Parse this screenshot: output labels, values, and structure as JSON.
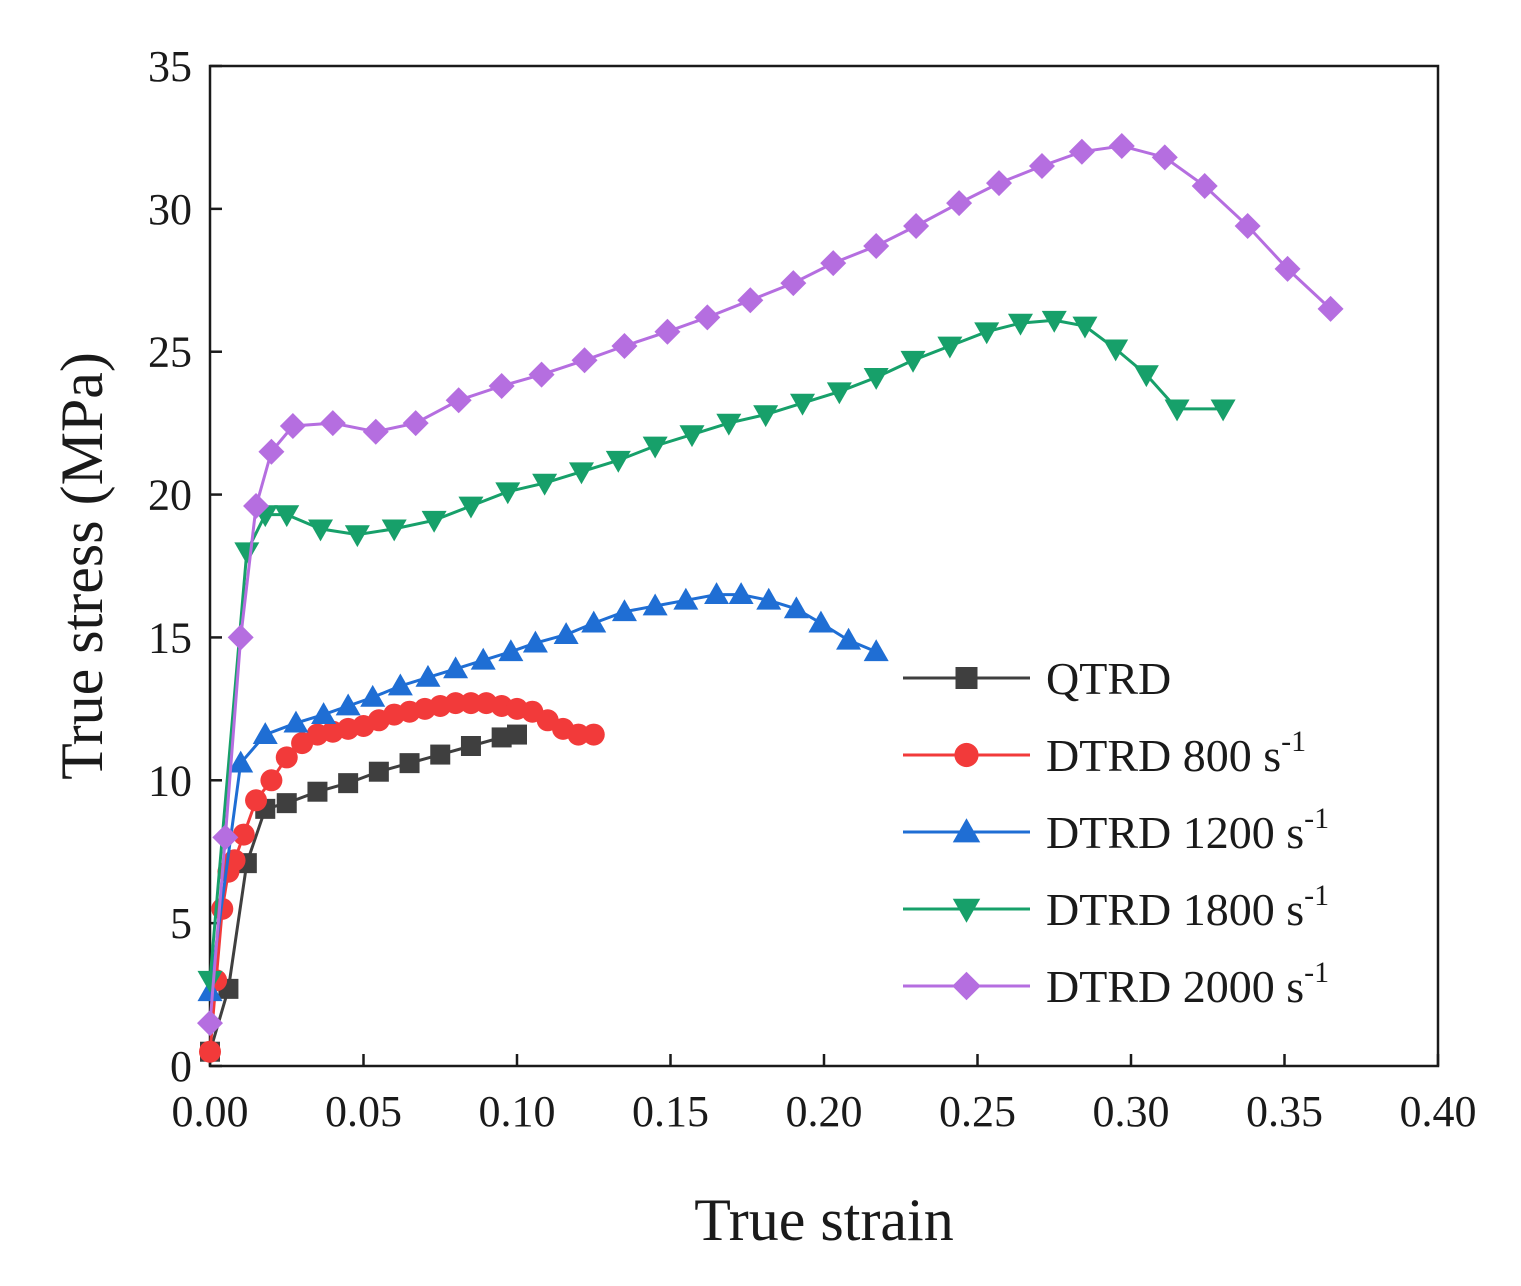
{
  "chart_data": {
    "type": "line",
    "title": "",
    "xlabel": "True strain",
    "ylabel": "True stress (MPa)",
    "xlim": [
      0,
      0.4
    ],
    "ylim": [
      0,
      35
    ],
    "xticks": [
      0,
      0.05,
      0.1,
      0.15,
      0.2,
      0.25,
      0.3,
      0.35,
      0.4
    ],
    "xtick_labels": [
      "0.00",
      "0.05",
      "0.10",
      "0.15",
      "0.20",
      "0.25",
      "0.30",
      "0.35",
      "0.40"
    ],
    "yticks": [
      0,
      5,
      10,
      15,
      20,
      25,
      30,
      35
    ],
    "ytick_labels": [
      "0",
      "5",
      "10",
      "15",
      "20",
      "25",
      "30",
      "35"
    ],
    "grid": false,
    "legend_position": "bottom-right",
    "series": [
      {
        "name": "QTRD",
        "legend_main": "QTRD",
        "legend_sup": "",
        "color": "#3f3f3f",
        "marker": "square",
        "x": [
          0.0,
          0.006,
          0.012,
          0.018,
          0.025,
          0.035,
          0.045,
          0.055,
          0.065,
          0.075,
          0.085,
          0.095,
          0.1
        ],
        "y": [
          0.5,
          2.7,
          7.1,
          9.0,
          9.2,
          9.6,
          9.9,
          10.3,
          10.6,
          10.9,
          11.2,
          11.5,
          11.6
        ]
      },
      {
        "name": "DTRD 800 s-1",
        "legend_main": "DTRD 800 s",
        "legend_sup": "-1",
        "color": "#f23a3a",
        "marker": "circle",
        "x": [
          0.0,
          0.002,
          0.004,
          0.006,
          0.008,
          0.011,
          0.015,
          0.02,
          0.025,
          0.03,
          0.035,
          0.04,
          0.045,
          0.05,
          0.055,
          0.06,
          0.065,
          0.07,
          0.075,
          0.08,
          0.085,
          0.09,
          0.095,
          0.1,
          0.105,
          0.11,
          0.115,
          0.12,
          0.125
        ],
        "y": [
          0.5,
          3.0,
          5.5,
          6.8,
          7.2,
          8.1,
          9.3,
          10.0,
          10.8,
          11.3,
          11.6,
          11.7,
          11.8,
          11.9,
          12.1,
          12.3,
          12.4,
          12.5,
          12.6,
          12.7,
          12.7,
          12.7,
          12.6,
          12.5,
          12.4,
          12.1,
          11.8,
          11.6,
          11.6
        ]
      },
      {
        "name": "DTRD 1200 s-1",
        "legend_main": "DTRD 1200 s",
        "legend_sup": "-1",
        "color": "#1f6ed4",
        "marker": "triangle-up",
        "x": [
          0.0,
          0.01,
          0.018,
          0.028,
          0.037,
          0.045,
          0.053,
          0.062,
          0.071,
          0.08,
          0.089,
          0.098,
          0.106,
          0.116,
          0.125,
          0.135,
          0.145,
          0.155,
          0.165,
          0.173,
          0.182,
          0.191,
          0.199,
          0.208,
          0.217
        ],
        "y": [
          2.6,
          10.6,
          11.6,
          12.0,
          12.3,
          12.6,
          12.9,
          13.3,
          13.6,
          13.9,
          14.2,
          14.5,
          14.8,
          15.1,
          15.5,
          15.9,
          16.1,
          16.3,
          16.5,
          16.5,
          16.3,
          16.0,
          15.5,
          14.9,
          14.5
        ]
      },
      {
        "name": "DTRD 1800 s-1",
        "legend_main": "DTRD 1800 s",
        "legend_sup": "-1",
        "color": "#17a06a",
        "marker": "triangle-down",
        "x": [
          0.0,
          0.012,
          0.018,
          0.025,
          0.036,
          0.048,
          0.06,
          0.073,
          0.085,
          0.097,
          0.109,
          0.121,
          0.133,
          0.145,
          0.157,
          0.169,
          0.181,
          0.193,
          0.205,
          0.217,
          0.229,
          0.241,
          0.253,
          0.264,
          0.275,
          0.285,
          0.295,
          0.305,
          0.315,
          0.33
        ],
        "y": [
          3.0,
          18.0,
          19.3,
          19.3,
          18.8,
          18.6,
          18.8,
          19.1,
          19.6,
          20.1,
          20.4,
          20.8,
          21.2,
          21.7,
          22.1,
          22.5,
          22.8,
          23.2,
          23.6,
          24.1,
          24.7,
          25.2,
          25.7,
          26.0,
          26.1,
          25.9,
          25.1,
          24.2,
          23.0,
          23.0
        ]
      },
      {
        "name": "DTRD 2000 s-1",
        "legend_main": "DTRD 2000 s",
        "legend_sup": "-1",
        "color": "#b56ee0",
        "marker": "diamond",
        "x": [
          0.0,
          0.005,
          0.01,
          0.015,
          0.02,
          0.027,
          0.04,
          0.054,
          0.067,
          0.081,
          0.095,
          0.108,
          0.122,
          0.135,
          0.149,
          0.162,
          0.176,
          0.19,
          0.203,
          0.217,
          0.23,
          0.244,
          0.257,
          0.271,
          0.284,
          0.297,
          0.311,
          0.324,
          0.338,
          0.351,
          0.365
        ],
        "y": [
          1.5,
          8.0,
          15.0,
          19.6,
          21.5,
          22.4,
          22.5,
          22.2,
          22.5,
          23.3,
          23.8,
          24.2,
          24.7,
          25.2,
          25.7,
          26.2,
          26.8,
          27.4,
          28.1,
          28.7,
          29.4,
          30.2,
          30.9,
          31.5,
          32.0,
          32.2,
          31.8,
          30.8,
          29.4,
          27.9,
          26.5
        ]
      }
    ]
  }
}
